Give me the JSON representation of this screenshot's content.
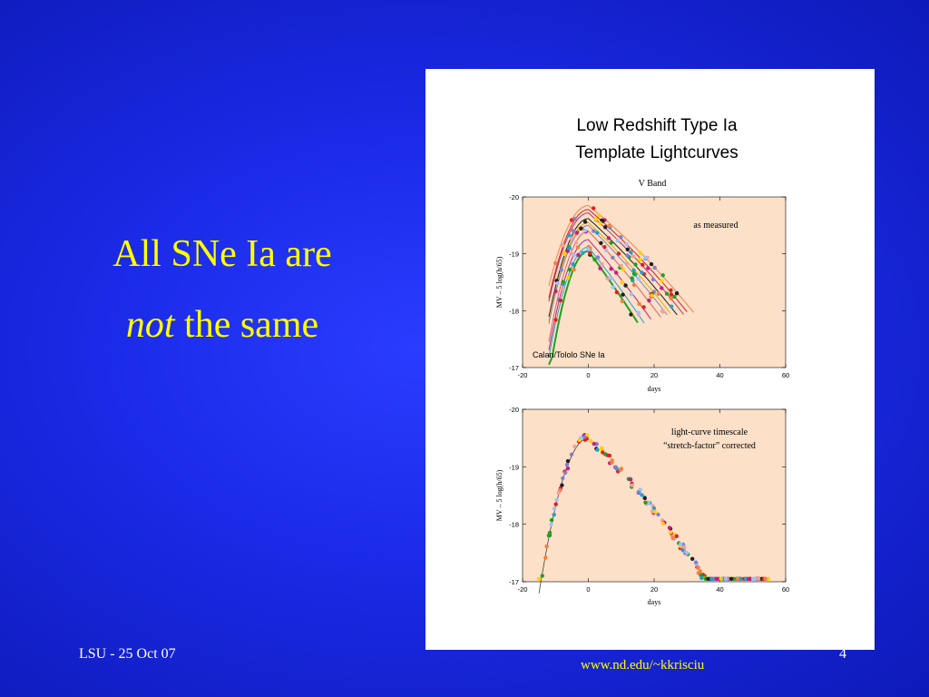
{
  "slide": {
    "headline_line1": "All SNe Ia are",
    "headline_em": "not",
    "headline_rest": " the same",
    "footer_left": "LSU - 25 Oct 07",
    "footer_url": "www.nd.edu/~kkrisciu",
    "slide_number": "4"
  },
  "figure": {
    "title_line1": "Low Redshift Type Ia",
    "title_line2": "Template Lightcurves",
    "band": "V Band"
  },
  "chart_data": [
    {
      "type": "line",
      "panel": "top",
      "annotation": "as measured",
      "legend_text": "Calan/Tololo SNe Ia",
      "xlabel": "days",
      "ylabel": "MV – 5 log(h/65)",
      "xlim": [
        -20,
        60
      ],
      "ylim": [
        -17,
        -20
      ],
      "x_ticks": [
        "-20",
        "0",
        "20",
        "40",
        "60"
      ],
      "y_ticks": [
        "-20",
        "-19",
        "-18",
        "-17"
      ],
      "background": "#fce0c8",
      "series": [
        {
          "peak": -19.85,
          "rise": 11,
          "decline": 0.046,
          "color": "#f08050"
        },
        {
          "peak": -19.78,
          "rise": 10,
          "decline": 0.048,
          "color": "#d02020"
        },
        {
          "peak": -19.72,
          "rise": 10,
          "decline": 0.05,
          "color": "#c03060"
        },
        {
          "peak": -19.62,
          "rise": 9,
          "decline": 0.052,
          "color": "#202020"
        },
        {
          "peak": -19.55,
          "rise": 9,
          "decline": 0.054,
          "color": "#e0b000"
        },
        {
          "peak": -19.5,
          "rise": 9,
          "decline": 0.056,
          "color": "#8080d0"
        },
        {
          "peak": -19.4,
          "rise": 8,
          "decline": 0.06,
          "color": "#e06060"
        },
        {
          "peak": -19.25,
          "rise": 8,
          "decline": 0.066,
          "color": "#c02080"
        },
        {
          "peak": -19.12,
          "rise": 8,
          "decline": 0.072,
          "color": "#20a0d0"
        },
        {
          "peak": -19.05,
          "rise": 7,
          "decline": 0.078,
          "color": "#20a020"
        }
      ]
    },
    {
      "type": "scatter",
      "panel": "bottom",
      "annotation_line1": "light-curve timescale",
      "annotation_line2": "“stretch-factor” corrected",
      "xlabel": "days",
      "ylabel": "MV – 5 log(h/65)",
      "xlim": [
        -20,
        60
      ],
      "ylim": [
        -17,
        -20
      ],
      "x_ticks": [
        "-20",
        "0",
        "20",
        "40",
        "60"
      ],
      "y_ticks": [
        "-20",
        "-19",
        "-18",
        "-17"
      ],
      "background": "#fce0c8",
      "template": {
        "peak": -19.5,
        "rise": 9,
        "decline": 0.055
      }
    }
  ]
}
